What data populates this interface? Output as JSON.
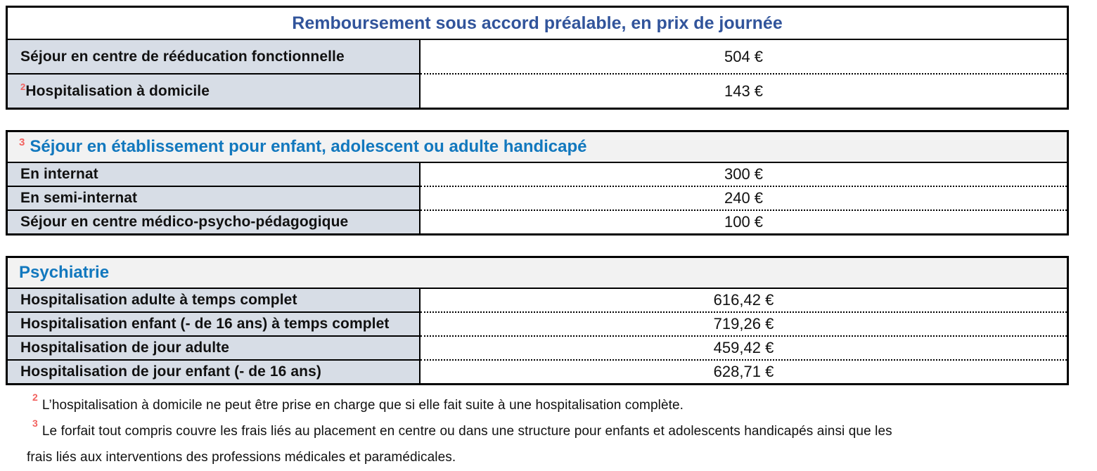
{
  "colors": {
    "navy": "#31549b",
    "azure": "#1278be",
    "red": "#f2625f",
    "cell_bg": "#d7dde6",
    "header_bg": "#f2f2f2",
    "border": "#000000"
  },
  "tables": [
    {
      "id": "remboursement-accord-prealable",
      "title": "Remboursement sous accord préalable, en prix de journée",
      "title_superscript": "",
      "rows": [
        {
          "superscript": "",
          "label": "Séjour en centre de rééducation fonctionnelle",
          "value": "504 €"
        },
        {
          "superscript": "2",
          "label": "Hospitalisation à domicile",
          "value": "143 €"
        }
      ]
    },
    {
      "id": "sejour-etablissement-handicape",
      "title": "Séjour en établissement pour enfant, adolescent ou adulte handicapé",
      "title_superscript": "3",
      "rows": [
        {
          "superscript": "",
          "label": "En internat",
          "value": "300 €"
        },
        {
          "superscript": "",
          "label": "En semi-internat",
          "value": "240 €"
        },
        {
          "superscript": "",
          "label": "Séjour en centre médico-psycho-pédagogique",
          "value": "100 €"
        }
      ]
    },
    {
      "id": "psychiatrie",
      "title": "Psychiatrie",
      "title_superscript": "",
      "rows": [
        {
          "superscript": "",
          "label": "Hospitalisation adulte à temps complet",
          "value": "616,42 €"
        },
        {
          "superscript": "",
          "label": "Hospitalisation enfant (- de 16 ans) à temps complet",
          "value": "719,26 €"
        },
        {
          "superscript": "",
          "label": "Hospitalisation de jour adulte",
          "value": "459,42 €"
        },
        {
          "superscript": "",
          "label": "Hospitalisation de jour enfant (- de 16 ans)",
          "value": "628,71 €"
        }
      ]
    }
  ],
  "footnotes": [
    {
      "marker": "2",
      "text": "L’hospitalisation à domicile ne peut être prise en charge que si elle fait suite à une hospitalisation complète."
    },
    {
      "marker": "3",
      "text": "Le forfait tout compris couvre les frais liés au placement en centre ou dans une structure pour enfants et adolescents handicapés ainsi que les frais liés aux interventions des professions médicales et paramédicales."
    }
  ]
}
